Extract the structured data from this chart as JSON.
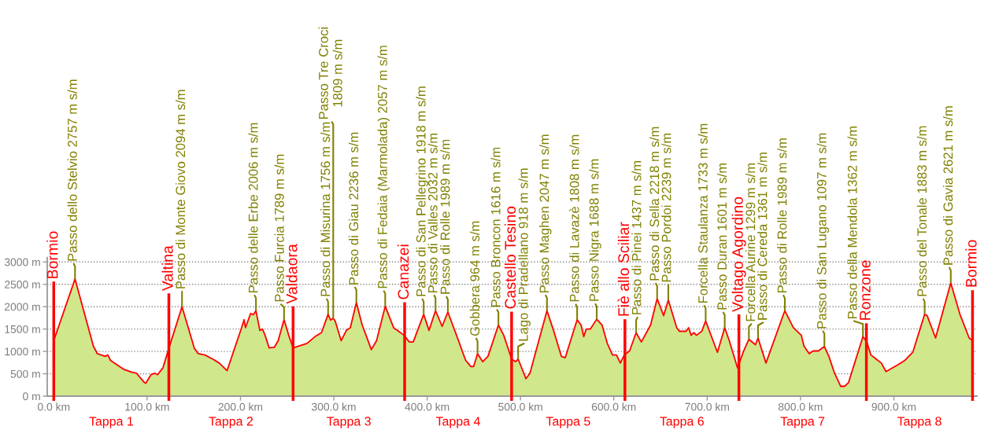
{
  "chart_data": {
    "type": "area",
    "x": [
      0,
      22.8,
      42.4,
      46.6,
      55.0,
      57.9,
      60.7,
      74.8,
      83.2,
      88.7,
      97.2,
      98.6,
      104.2,
      108.5,
      111.2,
      116.9,
      123.3,
      137.4,
      150.6,
      154.8,
      161.8,
      170.2,
      177.2,
      185.7,
      201.2,
      203.9,
      205.4,
      210.9,
      213.8,
      216.6,
      220.8,
      223.6,
      226.4,
      230.7,
      236.2,
      240.4,
      246.7,
      251.7,
      256.4,
      271.4,
      279.8,
      286.8,
      293.9,
      296.5,
      299.4,
      301.5,
      307.9,
      313.5,
      317.7,
      324.2,
      330.4,
      334.6,
      340.2,
      345.8,
      355.1,
      364.1,
      375.3,
      380.9,
      385.1,
      396.3,
      402.0,
      409.0,
      416.1,
      422.2,
      431.5,
      441.3,
      446.9,
      449.8,
      454.0,
      459.6,
      465.2,
      476.4,
      482.1,
      490.5,
      494.7,
      497.5,
      505.9,
      510.1,
      528.4,
      535.4,
      543.8,
      548.0,
      560.7,
      564.9,
      567.8,
      570.5,
      574.8,
      581.7,
      587.4,
      593.0,
      598.6,
      602.8,
      607.0,
      611.2,
      616.9,
      623.9,
      629.5,
      639.4,
      646.4,
      653.4,
      658.4,
      667.4,
      670.2,
      677.3,
      680.1,
      682.9,
      685.8,
      688.5,
      694.2,
      698.4,
      711.0,
      718.8,
      723.7,
      732.6,
      739.1,
      744.7,
      751.7,
      754.5,
      763.0,
      783.2,
      792.4,
      800.9,
      803.7,
      809.3,
      813.5,
      819.2,
      825.6,
      830.4,
      836.0,
      843.0,
      847.2,
      851.4,
      866.9,
      871.1,
      875.4,
      881.0,
      886.6,
      891.6,
      903.4,
      911.9,
      920.3,
      933.0,
      935.7,
      944.7,
      961.0,
      970.8,
      980.7,
      984.3
    ],
    "series": [
      {
        "color": "#d0e78b",
        "values": [
          1240,
          2620,
          1120,
          950,
          890,
          920,
          800,
          600,
          540,
          510,
          300,
          290,
          480,
          510,
          480,
          630,
          1070,
          2000,
          1070,
          950,
          920,
          830,
          740,
          570,
          1530,
          1710,
          1530,
          1850,
          1820,
          1910,
          1470,
          1500,
          1360,
          1080,
          1090,
          1240,
          1710,
          1360,
          1080,
          1180,
          1330,
          1420,
          1830,
          1700,
          1740,
          1680,
          1240,
          1470,
          1530,
          2090,
          1590,
          1360,
          1040,
          1240,
          2010,
          1530,
          1360,
          1210,
          1210,
          1830,
          1470,
          1910,
          1560,
          1880,
          1360,
          800,
          660,
          660,
          950,
          770,
          890,
          1590,
          1360,
          830,
          770,
          830,
          390,
          510,
          1910,
          1470,
          890,
          860,
          1710,
          1590,
          1330,
          1500,
          1500,
          1720,
          1590,
          1180,
          920,
          920,
          740,
          920,
          1010,
          1420,
          1210,
          1590,
          2180,
          1800,
          2150,
          1530,
          1450,
          1450,
          1530,
          1360,
          1420,
          1360,
          1450,
          1680,
          980,
          1530,
          1240,
          630,
          1010,
          1270,
          1150,
          1300,
          740,
          1910,
          1530,
          1360,
          1120,
          950,
          1010,
          1010,
          1110,
          890,
          540,
          220,
          220,
          300,
          1330,
          1210,
          920,
          830,
          740,
          550,
          690,
          800,
          980,
          1830,
          1800,
          1300,
          2530,
          1830,
          1300,
          1240
        ]
      },
      {
        "type": "line",
        "color": "#ff0000",
        "values": [
          1240,
          2620,
          1120,
          950,
          890,
          920,
          800,
          600,
          540,
          510,
          300,
          290,
          480,
          510,
          480,
          630,
          1070,
          2000,
          1070,
          950,
          920,
          830,
          740,
          570,
          1530,
          1710,
          1530,
          1850,
          1820,
          1910,
          1470,
          1500,
          1360,
          1080,
          1090,
          1240,
          1710,
          1360,
          1080,
          1180,
          1330,
          1420,
          1830,
          1700,
          1740,
          1680,
          1240,
          1470,
          1530,
          2090,
          1590,
          1360,
          1040,
          1240,
          2010,
          1530,
          1360,
          1210,
          1210,
          1830,
          1470,
          1910,
          1560,
          1880,
          1360,
          800,
          660,
          660,
          950,
          770,
          890,
          1590,
          1360,
          830,
          770,
          830,
          390,
          510,
          1910,
          1470,
          890,
          860,
          1710,
          1590,
          1330,
          1500,
          1500,
          1720,
          1590,
          1180,
          920,
          920,
          740,
          920,
          1010,
          1420,
          1210,
          1590,
          2180,
          1800,
          2150,
          1530,
          1450,
          1450,
          1530,
          1360,
          1420,
          1360,
          1450,
          1680,
          980,
          1530,
          1240,
          630,
          1010,
          1270,
          1150,
          1300,
          740,
          1910,
          1530,
          1360,
          1120,
          950,
          1010,
          1010,
          1110,
          890,
          540,
          220,
          220,
          300,
          1330,
          1210,
          920,
          830,
          740,
          550,
          690,
          800,
          980,
          1830,
          1800,
          1300,
          2530,
          1830,
          1300,
          1240
        ]
      }
    ],
    "xlim": [
      -7,
      989
    ],
    "xticks": [
      {
        "value": 0,
        "label": "0.0 km"
      },
      {
        "value": 100,
        "label": "100.0 km"
      },
      {
        "value": 200,
        "label": "200.0 km"
      },
      {
        "value": 300,
        "label": "300.0 km"
      },
      {
        "value": 400,
        "label": "400.0 km"
      },
      {
        "value": 500,
        "label": "500.0 km"
      },
      {
        "value": 600,
        "label": "600.0 km"
      },
      {
        "value": 700,
        "label": "700.0 km"
      },
      {
        "value": 800,
        "label": "800.0 km"
      },
      {
        "value": 900,
        "label": "900.0 km"
      }
    ],
    "ylim": [
      0,
      3100
    ],
    "yticks": [
      {
        "value": 0,
        "label": "0 m"
      },
      {
        "value": 500,
        "label": "500 m"
      },
      {
        "value": 1000,
        "label": "1000 m"
      },
      {
        "value": 1500,
        "label": "1500 m"
      },
      {
        "value": 2000,
        "label": "2000 m"
      },
      {
        "value": 2500,
        "label": "2500 m"
      },
      {
        "value": 3000,
        "label": "3000 m"
      }
    ],
    "grid": "y",
    "ref_lines": [
      {
        "axis": "x",
        "value": 0,
        "label": "Bormio",
        "color": "#ff0000"
      },
      {
        "axis": "x",
        "value": 123.3,
        "label": "Valtina",
        "color": "#ff0000"
      },
      {
        "axis": "x",
        "value": 256.4,
        "label": "Valdaora",
        "color": "#ff0000"
      },
      {
        "axis": "x",
        "value": 375.9,
        "label": "Canazei",
        "color": "#ff0000"
      },
      {
        "axis": "x",
        "value": 490.5,
        "label": "Castello Tesino",
        "color": "#ff0000"
      },
      {
        "axis": "x",
        "value": 611.9,
        "label": "Fiè allo Sciliar",
        "color": "#ff0000"
      },
      {
        "axis": "x",
        "value": 734.0,
        "label": "Voltago Agordino",
        "color": "#ff0000"
      },
      {
        "axis": "x",
        "value": 870.6,
        "label": "Ronzone",
        "color": "#ff0000"
      },
      {
        "axis": "x",
        "value": 984.3,
        "label": "Bormio",
        "color": "#ff0000"
      }
    ],
    "annotations": [
      {
        "text": "Passo dello Stelvio 2757 m s/m",
        "x": 22.8,
        "y": 2620
      },
      {
        "text": "Passo di Monte Giovo 2094 m s/m",
        "x": 137.4,
        "y": 2000
      },
      {
        "text": "Passo delle Erbe 2006 m s/m",
        "x": 216.6,
        "y": 1910
      },
      {
        "text": "Passo Furcia 1789 m s/m",
        "x": 246.7,
        "y": 1710
      },
      {
        "text": "Passo di Misurina 1756 m s/m",
        "x": 293.9,
        "y": 1830
      },
      {
        "text": "Passo Tre Croci\n1809 m s/m",
        "x": 299.4,
        "y": 1740
      },
      {
        "text": "Passo di Giau 2236 m s/m",
        "x": 324.2,
        "y": 2090
      },
      {
        "text": "Passo di Fedaia (Marmolada) 2057 m s/m",
        "x": 355.1,
        "y": 2010
      },
      {
        "text": "Passo di San Pellegrino 1918 m s/m",
        "x": 396.3,
        "y": 1830
      },
      {
        "text": "Passo di Valles 2032 m s/m",
        "x": 409.0,
        "y": 1910
      },
      {
        "text": "Passo di Rolle 1989 m s/m",
        "x": 422.2,
        "y": 1880
      },
      {
        "text": "Gobbera 964 m s/m",
        "x": 454.0,
        "y": 950
      },
      {
        "text": "Passo Broncon 1616 m s/m",
        "x": 476.4,
        "y": 1590
      },
      {
        "text": "Lago di Pradellano 918 m s/m",
        "x": 497.5,
        "y": 830
      },
      {
        "text": "Passo Maghen 2047 m s/m",
        "x": 528.4,
        "y": 1910
      },
      {
        "text": "Passo di Lavazè 1808 m s/m",
        "x": 560.7,
        "y": 1710
      },
      {
        "text": "Passo Nigra 1688 m s/m",
        "x": 581.7,
        "y": 1720
      },
      {
        "text": "Passo di Pinei 1437 m s/m",
        "x": 623.9,
        "y": 1420
      },
      {
        "text": "Passo di Sella 2218 m s/m",
        "x": 646.4,
        "y": 2180
      },
      {
        "text": "Passo Pordoi 2239 m s/m",
        "x": 658.4,
        "y": 2150
      },
      {
        "text": "Forcella Staulanza 1733 m s/m",
        "x": 698.4,
        "y": 1680
      },
      {
        "text": "Passo Duran 1601 m s/m",
        "x": 718.8,
        "y": 1530
      },
      {
        "text": "Forcella Aurine 1299 m s/m",
        "x": 744.7,
        "y": 1270
      },
      {
        "text": "Passo di Cereda 1361 m s/m",
        "x": 754.5,
        "y": 1300
      },
      {
        "text": "Passo di Rolle 1989 m s/m",
        "x": 783.2,
        "y": 1910
      },
      {
        "text": "Passo di San Lugano 1097 m s/m",
        "x": 825.6,
        "y": 1110
      },
      {
        "text": "Passo della Mendola 1362 m s/m",
        "x": 866.9,
        "y": 1330
      },
      {
        "text": "Passo del Tonale 1883 m s/m",
        "x": 933.0,
        "y": 1830
      },
      {
        "text": "Passo di Gavia 2621 m s/m",
        "x": 961.0,
        "y": 2530
      },
      "Tappa 1",
      "Tappa 2",
      "Tappa 3",
      "Tappa 4",
      "Tappa 5",
      "Tappa 6",
      "Tappa 7",
      "Tappa 8"
    ]
  }
}
